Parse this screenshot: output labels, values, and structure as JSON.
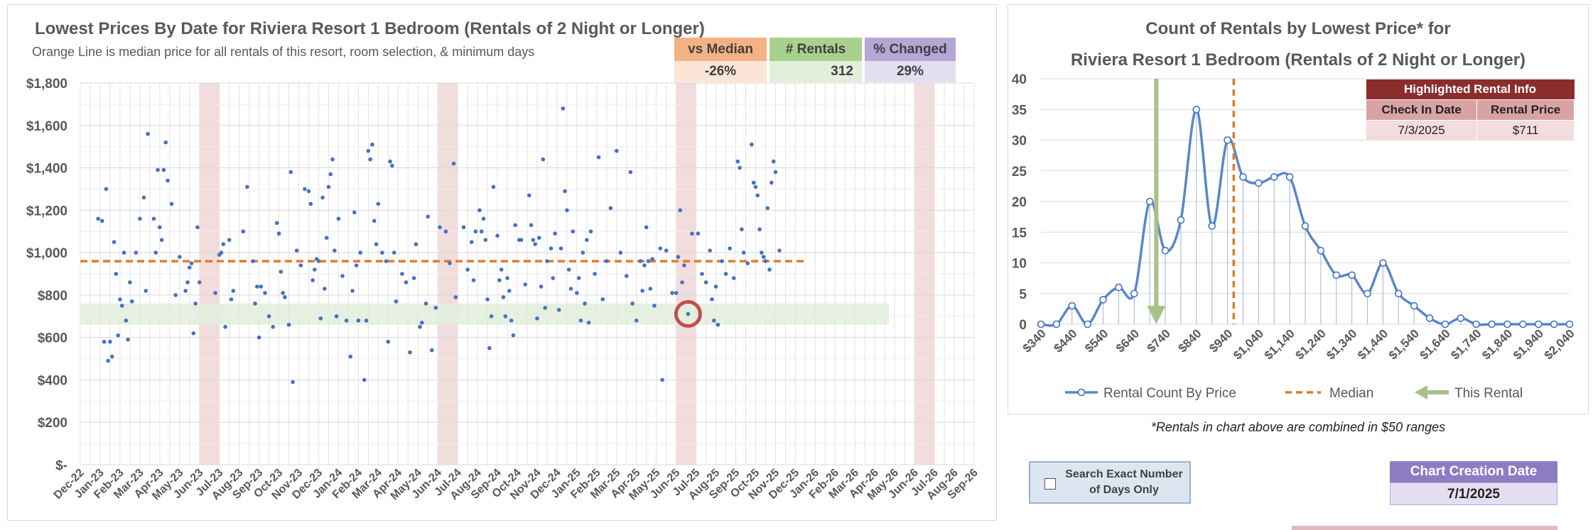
{
  "left_chart": {
    "title": "Lowest Prices By Date for Riviera Resort 1 Bedroom (Rentals of 2 Night or Longer)",
    "subtitle": "Orange Line is median price for all rentals of this resort, room selection, & minimum days",
    "kpis": [
      {
        "label": "vs Median",
        "value": "-26%",
        "head_color": "#f4b183",
        "val_color": "#fbe5d6"
      },
      {
        "label": "# Rentals",
        "value": "312",
        "head_color": "#a9d18e",
        "val_color": "#e2efda"
      },
      {
        "label": "% Changed",
        "value": "29%",
        "head_color": "#b4a7d6",
        "val_color": "#e4dff0"
      }
    ]
  },
  "right_chart": {
    "title_line1": "Count of Rentals by Lowest Price* for",
    "title_line2": "Riviera Resort 1 Bedroom (Rentals of 2 Night or Longer)",
    "highlight_table": {
      "title": "Highlighted Rental Info",
      "col1": "Check In Date",
      "col2": "Rental Price",
      "check_in": "7/3/2025",
      "price": "$711"
    },
    "footnote": "*Rentals in chart above are combined in $50 ranges"
  },
  "controls": {
    "search_exact_label": "Search Exact Number of Days Only",
    "chart_creation_label": "Chart Creation Date",
    "chart_creation_value": "7/1/2025"
  },
  "colors": {
    "points": "#4472c4",
    "median": "#e07b2a",
    "band": "#e2efda",
    "highlight_col": "#f2dcdc",
    "this_rental": "#a9c08a",
    "circle": "#c0504d"
  },
  "chart_data": [
    {
      "type": "scatter",
      "title": "Lowest Prices By Date for Riviera Resort 1 Bedroom (Rentals of 2 Night or Longer)",
      "x_categories": [
        "Dec-22",
        "Jan-23",
        "Feb-23",
        "Mar-23",
        "Apr-23",
        "May-23",
        "Jun-23",
        "Jul-23",
        "Aug-23",
        "Sep-23",
        "Oct-23",
        "Nov-23",
        "Dec-23",
        "Jan-24",
        "Feb-24",
        "Mar-24",
        "Apr-24",
        "May-24",
        "Jun-24",
        "Jul-24",
        "Aug-24",
        "Sep-24",
        "Oct-24",
        "Nov-24",
        "Dec-24",
        "Jan-25",
        "Feb-25",
        "Mar-25",
        "Apr-25",
        "May-25",
        "Jun-25",
        "Jul-25",
        "Aug-25",
        "Sep-25",
        "Oct-25",
        "Nov-25",
        "Dec-25",
        "Jan-26",
        "Feb-26",
        "Mar-26",
        "Apr-26",
        "May-26",
        "Jun-26",
        "Jul-26",
        "Aug-26",
        "Sep-26"
      ],
      "y_ticks": [
        "$-",
        "$200",
        "$400",
        "$600",
        "$800",
        "$1,000",
        "$1,200",
        "$1,400",
        "$1,600",
        "$1,800"
      ],
      "ylim": [
        0,
        1800
      ],
      "median": 960,
      "highlight_band": [
        660,
        760
      ],
      "highlighted_months": [
        6.5,
        18.5,
        30.5,
        42.5
      ],
      "highlighted_point": {
        "month": 30.6,
        "price": 711
      },
      "grid": true,
      "points": [
        [
          0.9,
          1160
        ],
        [
          1.1,
          1150
        ],
        [
          1.3,
          1300
        ],
        [
          1.2,
          580
        ],
        [
          1.4,
          490
        ],
        [
          1.5,
          580
        ],
        [
          1.6,
          510
        ],
        [
          1.7,
          1050
        ],
        [
          1.8,
          900
        ],
        [
          1.9,
          610
        ],
        [
          2.0,
          780
        ],
        [
          2.1,
          750
        ],
        [
          2.2,
          1000
        ],
        [
          2.3,
          680
        ],
        [
          2.4,
          590
        ],
        [
          2.5,
          860
        ],
        [
          2.6,
          770
        ],
        [
          2.8,
          1000
        ],
        [
          3.0,
          1160
        ],
        [
          3.2,
          1260
        ],
        [
          3.3,
          820
        ],
        [
          3.4,
          1560
        ],
        [
          3.7,
          1160
        ],
        [
          3.8,
          1000
        ],
        [
          3.9,
          1390
        ],
        [
          4.0,
          1120
        ],
        [
          4.1,
          1060
        ],
        [
          4.2,
          1390
        ],
        [
          4.3,
          1520
        ],
        [
          4.4,
          1340
        ],
        [
          4.6,
          1230
        ],
        [
          4.8,
          800
        ],
        [
          5.0,
          980
        ],
        [
          5.3,
          820
        ],
        [
          5.4,
          860
        ],
        [
          5.5,
          930
        ],
        [
          5.6,
          950
        ],
        [
          5.7,
          620
        ],
        [
          5.8,
          760
        ],
        [
          5.9,
          1120
        ],
        [
          6.0,
          860
        ],
        [
          6.8,
          810
        ],
        [
          7.0,
          990
        ],
        [
          7.1,
          1000
        ],
        [
          7.2,
          1040
        ],
        [
          7.3,
          650
        ],
        [
          7.5,
          1060
        ],
        [
          7.6,
          780
        ],
        [
          7.7,
          820
        ],
        [
          8.2,
          1100
        ],
        [
          8.4,
          1310
        ],
        [
          8.7,
          960
        ],
        [
          8.8,
          760
        ],
        [
          8.9,
          840
        ],
        [
          9.0,
          600
        ],
        [
          9.1,
          840
        ],
        [
          9.3,
          810
        ],
        [
          9.5,
          700
        ],
        [
          9.7,
          650
        ],
        [
          9.9,
          1140
        ],
        [
          10.0,
          1090
        ],
        [
          10.1,
          910
        ],
        [
          10.2,
          810
        ],
        [
          10.3,
          790
        ],
        [
          10.5,
          660
        ],
        [
          10.6,
          1380
        ],
        [
          10.7,
          390
        ],
        [
          10.9,
          1010
        ],
        [
          11.1,
          940
        ],
        [
          11.3,
          1300
        ],
        [
          11.5,
          1290
        ],
        [
          11.6,
          1230
        ],
        [
          11.7,
          870
        ],
        [
          11.8,
          920
        ],
        [
          11.9,
          970
        ],
        [
          12.0,
          960
        ],
        [
          12.1,
          690
        ],
        [
          12.2,
          1260
        ],
        [
          12.3,
          830
        ],
        [
          12.4,
          1070
        ],
        [
          12.5,
          1310
        ],
        [
          12.6,
          1370
        ],
        [
          12.7,
          1440
        ],
        [
          12.8,
          1010
        ],
        [
          12.9,
          700
        ],
        [
          13.0,
          1160
        ],
        [
          13.2,
          890
        ],
        [
          13.4,
          680
        ],
        [
          13.6,
          510
        ],
        [
          13.7,
          820
        ],
        [
          13.8,
          1190
        ],
        [
          13.9,
          940
        ],
        [
          14.0,
          680
        ],
        [
          14.1,
          1000
        ],
        [
          14.3,
          400
        ],
        [
          14.4,
          680
        ],
        [
          14.5,
          1480
        ],
        [
          14.6,
          1440
        ],
        [
          14.7,
          1510
        ],
        [
          14.8,
          1150
        ],
        [
          14.9,
          1040
        ],
        [
          15.0,
          1230
        ],
        [
          15.2,
          1000
        ],
        [
          15.4,
          960
        ],
        [
          15.5,
          580
        ],
        [
          15.6,
          1430
        ],
        [
          15.7,
          1410
        ],
        [
          15.8,
          1000
        ],
        [
          15.9,
          770
        ],
        [
          16.2,
          900
        ],
        [
          16.4,
          860
        ],
        [
          16.6,
          530
        ],
        [
          16.8,
          880
        ],
        [
          16.9,
          1040
        ],
        [
          17.1,
          650
        ],
        [
          17.2,
          670
        ],
        [
          17.4,
          760
        ],
        [
          17.5,
          1170
        ],
        [
          17.7,
          540
        ],
        [
          17.9,
          740
        ],
        [
          18.1,
          1120
        ],
        [
          18.4,
          1100
        ],
        [
          18.6,
          950
        ],
        [
          18.8,
          1420
        ],
        [
          18.9,
          790
        ],
        [
          19.3,
          1120
        ],
        [
          19.5,
          920
        ],
        [
          19.7,
          1050
        ],
        [
          19.8,
          870
        ],
        [
          19.9,
          1100
        ],
        [
          20.1,
          1200
        ],
        [
          20.2,
          1100
        ],
        [
          20.3,
          1160
        ],
        [
          20.4,
          1060
        ],
        [
          20.5,
          780
        ],
        [
          20.6,
          550
        ],
        [
          20.7,
          700
        ],
        [
          20.8,
          1310
        ],
        [
          21.0,
          1080
        ],
        [
          21.1,
          870
        ],
        [
          21.2,
          920
        ],
        [
          21.3,
          790
        ],
        [
          21.4,
          700
        ],
        [
          21.5,
          880
        ],
        [
          21.6,
          820
        ],
        [
          21.7,
          680
        ],
        [
          21.8,
          610
        ],
        [
          21.9,
          1130
        ],
        [
          22.1,
          1060
        ],
        [
          22.2,
          1060
        ],
        [
          22.4,
          850
        ],
        [
          22.6,
          1270
        ],
        [
          22.7,
          1130
        ],
        [
          22.8,
          1060
        ],
        [
          22.9,
          1040
        ],
        [
          23.0,
          690
        ],
        [
          23.1,
          1070
        ],
        [
          23.2,
          840
        ],
        [
          23.3,
          1440
        ],
        [
          23.4,
          740
        ],
        [
          23.5,
          960
        ],
        [
          23.7,
          1020
        ],
        [
          23.8,
          880
        ],
        [
          23.9,
          1090
        ],
        [
          24.1,
          730
        ],
        [
          24.2,
          1020
        ],
        [
          24.3,
          1680
        ],
        [
          24.4,
          1290
        ],
        [
          24.5,
          1200
        ],
        [
          24.6,
          920
        ],
        [
          24.7,
          830
        ],
        [
          24.8,
          1100
        ],
        [
          25.0,
          810
        ],
        [
          25.1,
          880
        ],
        [
          25.2,
          680
        ],
        [
          25.3,
          1000
        ],
        [
          25.4,
          760
        ],
        [
          25.5,
          1060
        ],
        [
          25.6,
          670
        ],
        [
          25.7,
          1100
        ],
        [
          25.9,
          900
        ],
        [
          26.1,
          1450
        ],
        [
          26.3,
          780
        ],
        [
          26.5,
          960
        ],
        [
          26.7,
          1210
        ],
        [
          27.0,
          1480
        ],
        [
          27.2,
          1000
        ],
        [
          27.5,
          890
        ],
        [
          27.7,
          1380
        ],
        [
          27.8,
          760
        ],
        [
          28.0,
          680
        ],
        [
          28.2,
          960
        ],
        [
          28.3,
          820
        ],
        [
          28.4,
          940
        ],
        [
          28.5,
          1120
        ],
        [
          28.6,
          960
        ],
        [
          28.7,
          830
        ],
        [
          28.8,
          970
        ],
        [
          28.9,
          750
        ],
        [
          29.2,
          1020
        ],
        [
          29.3,
          400
        ],
        [
          29.5,
          1010
        ],
        [
          29.8,
          810
        ],
        [
          30.0,
          810
        ],
        [
          30.1,
          980
        ],
        [
          30.2,
          1200
        ],
        [
          30.3,
          860
        ],
        [
          30.4,
          940
        ],
        [
          30.6,
          711
        ],
        [
          30.8,
          1090
        ],
        [
          31.1,
          1090
        ],
        [
          31.3,
          900
        ],
        [
          31.5,
          860
        ],
        [
          31.7,
          1010
        ],
        [
          31.8,
          780
        ],
        [
          31.9,
          680
        ],
        [
          32.0,
          840
        ],
        [
          32.1,
          660
        ],
        [
          32.3,
          960
        ],
        [
          32.5,
          900
        ],
        [
          32.7,
          1020
        ],
        [
          32.9,
          880
        ],
        [
          33.1,
          1430
        ],
        [
          33.2,
          1400
        ],
        [
          33.3,
          1110
        ],
        [
          33.4,
          1000
        ],
        [
          33.6,
          950
        ],
        [
          33.8,
          1510
        ],
        [
          33.9,
          1330
        ],
        [
          34.0,
          1310
        ],
        [
          34.1,
          1270
        ],
        [
          34.2,
          1110
        ],
        [
          34.3,
          1000
        ],
        [
          34.4,
          980
        ],
        [
          34.5,
          960
        ],
        [
          34.6,
          1210
        ],
        [
          34.7,
          920
        ],
        [
          34.8,
          1330
        ],
        [
          34.9,
          1430
        ],
        [
          35.0,
          1380
        ],
        [
          35.2,
          1010
        ]
      ]
    },
    {
      "type": "line",
      "title": "Count of Rentals by Lowest Price* for Riviera Resort 1 Bedroom (Rentals of 2 Night or Longer)",
      "x": [
        340,
        390,
        440,
        490,
        540,
        590,
        640,
        690,
        740,
        790,
        840,
        890,
        940,
        990,
        1040,
        1090,
        1140,
        1190,
        1240,
        1290,
        1340,
        1390,
        1440,
        1490,
        1540,
        1590,
        1640,
        1690,
        1740,
        1790,
        1840,
        1890,
        1940,
        1990,
        2040
      ],
      "x_tick_labels": [
        "$340",
        "$440",
        "$540",
        "$640",
        "$740",
        "$840",
        "$940",
        "$1,040",
        "$1,140",
        "$1,240",
        "$1,340",
        "$1,440",
        "$1,540",
        "$1,640",
        "$1,740",
        "$1,840",
        "$1,940",
        "$2,040"
      ],
      "series": [
        {
          "name": "Rental Count By Price",
          "values": [
            0,
            0,
            3,
            0,
            4,
            6,
            5,
            20,
            12,
            17,
            35,
            16,
            30,
            24,
            23,
            24,
            24,
            16,
            12,
            8,
            8,
            5,
            10,
            5,
            3,
            1,
            0,
            1,
            0,
            0,
            0,
            0,
            0,
            0,
            0
          ]
        }
      ],
      "median_x": 960,
      "this_rental_x": 711,
      "ylim": [
        0,
        40
      ],
      "y_ticks": [
        "0",
        "5",
        "10",
        "15",
        "20",
        "25",
        "30",
        "35",
        "40"
      ],
      "legend": [
        "Rental Count By Price",
        "Median",
        "This Rental"
      ],
      "legend_position": "bottom"
    }
  ]
}
